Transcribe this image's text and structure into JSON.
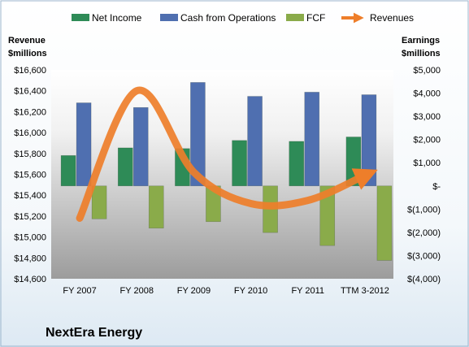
{
  "chart_data": {
    "type": "bar",
    "title": "NextEra Energy",
    "categories": [
      "FY 2007",
      "FY 2008",
      "FY 2009",
      "FY 2010",
      "FY 2011",
      "TTM 3-2012"
    ],
    "left_axis": {
      "label_line1": "Revenue",
      "label_line2": "$millions",
      "range": [
        14600,
        16600
      ],
      "ticks": [
        "$14,600",
        "$14,800",
        "$15,000",
        "$15,200",
        "$15,400",
        "$15,600",
        "$15,800",
        "$16,000",
        "$16,200",
        "$16,400",
        "$16,600"
      ]
    },
    "right_axis": {
      "label_line1": "Earnings",
      "label_line2": "$millions",
      "range": [
        -4000,
        5000
      ],
      "ticks": [
        "$(4,000)",
        "$(3,000)",
        "$(2,000)",
        "$(1,000)",
        "$-",
        "$1,000",
        "$2,000",
        "$3,000",
        "$4,000",
        "$5,000"
      ]
    },
    "legend_position": "top",
    "grid": false,
    "series": [
      {
        "name": "Net Income",
        "axis": "right",
        "kind": "bar",
        "color": "#2e8b57",
        "values": [
          1310,
          1640,
          1610,
          1960,
          1920,
          2110
        ]
      },
      {
        "name": "Cash from Operations",
        "axis": "right",
        "kind": "bar",
        "color": "#4f6fb0",
        "values": [
          3580,
          3380,
          4460,
          3860,
          4040,
          3930
        ]
      },
      {
        "name": "FCF",
        "axis": "right",
        "kind": "bar",
        "color": "#8aab4a",
        "values": [
          -1420,
          -1820,
          -1540,
          -2010,
          -2570,
          -3210
        ]
      },
      {
        "name": "Revenues",
        "axis": "left",
        "kind": "curve",
        "color": "#ee7e2a",
        "values": [
          15180,
          16400,
          15620,
          15320,
          15350,
          15590
        ]
      }
    ]
  }
}
